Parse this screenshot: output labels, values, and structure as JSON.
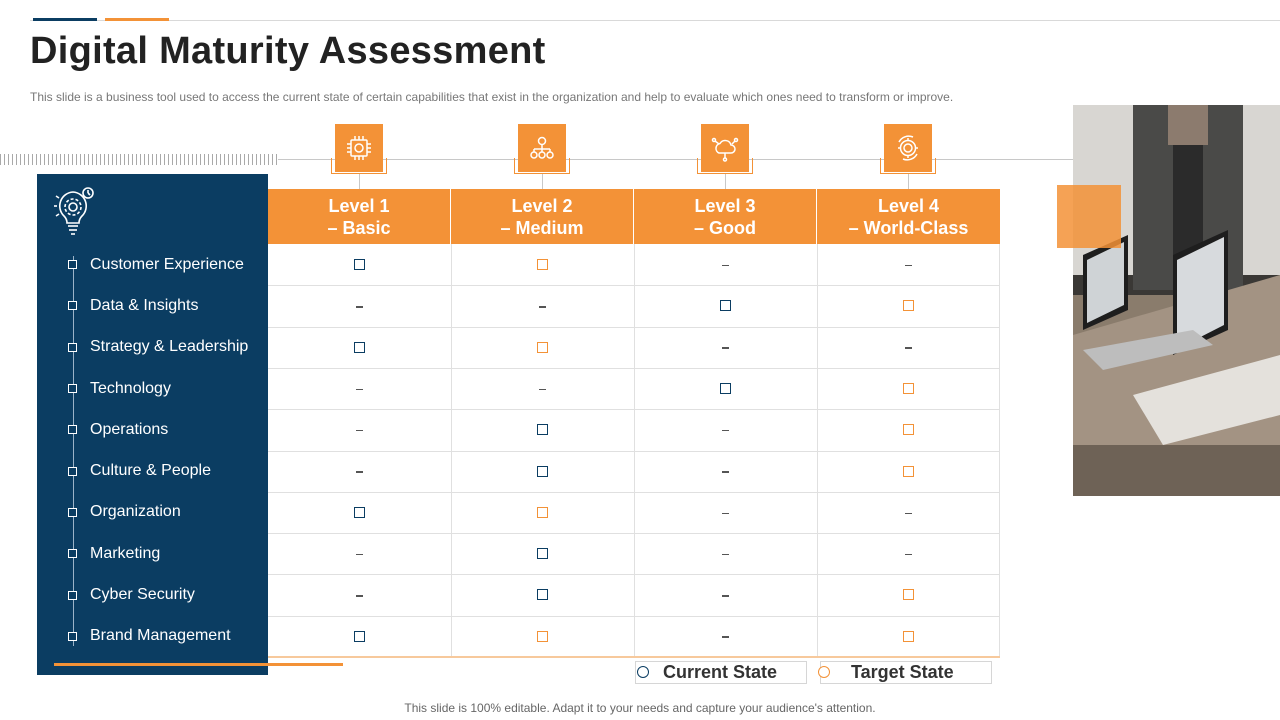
{
  "title": "Digital Maturity Assessment",
  "subtitle": "This slide is a business tool used to access the current state of certain capabilities that exist in the organization and help to evaluate  which ones need to transform  or improve.",
  "levels": [
    {
      "line1": "Level 1",
      "line2": "– Basic",
      "icon": "chip-icon"
    },
    {
      "line1": "Level 2",
      "line2": "– Medium",
      "icon": "org-chart-icon"
    },
    {
      "line1": "Level 3",
      "line2": "– Good",
      "icon": "cloud-network-icon"
    },
    {
      "line1": "Level 4",
      "line2": "– World-Class",
      "icon": "gear-cycle-icon"
    }
  ],
  "capabilities": [
    {
      "label": "Customer Experience",
      "marks": [
        "current",
        "target",
        "none",
        "none"
      ]
    },
    {
      "label": "Data & Insights",
      "marks": [
        "none",
        "none",
        "current",
        "target"
      ]
    },
    {
      "label": "Strategy & Leadership",
      "marks": [
        "current",
        "target",
        "none",
        "none"
      ]
    },
    {
      "label": "Technology",
      "marks": [
        "none",
        "none",
        "current",
        "target"
      ]
    },
    {
      "label": "Operations",
      "marks": [
        "none",
        "current",
        "none",
        "target"
      ]
    },
    {
      "label": "Culture  & People",
      "marks": [
        "none",
        "current",
        "none",
        "target"
      ]
    },
    {
      "label": "Organization",
      "marks": [
        "current",
        "target",
        "none",
        "none"
      ]
    },
    {
      "label": "Marketing",
      "marks": [
        "none",
        "current",
        "none",
        "none"
      ]
    },
    {
      "label": "Cyber Security",
      "marks": [
        "none",
        "current",
        "none",
        "target"
      ]
    },
    {
      "label": "Brand Management",
      "marks": [
        "current",
        "target",
        "none",
        "target"
      ]
    }
  ],
  "legend": {
    "current": "Current State",
    "target": "Target State"
  },
  "colors": {
    "navy": "#0b3d62",
    "orange": "#f39237"
  },
  "footer": "This slide is 100% editable. Adapt it to your needs and capture your audience's attention."
}
